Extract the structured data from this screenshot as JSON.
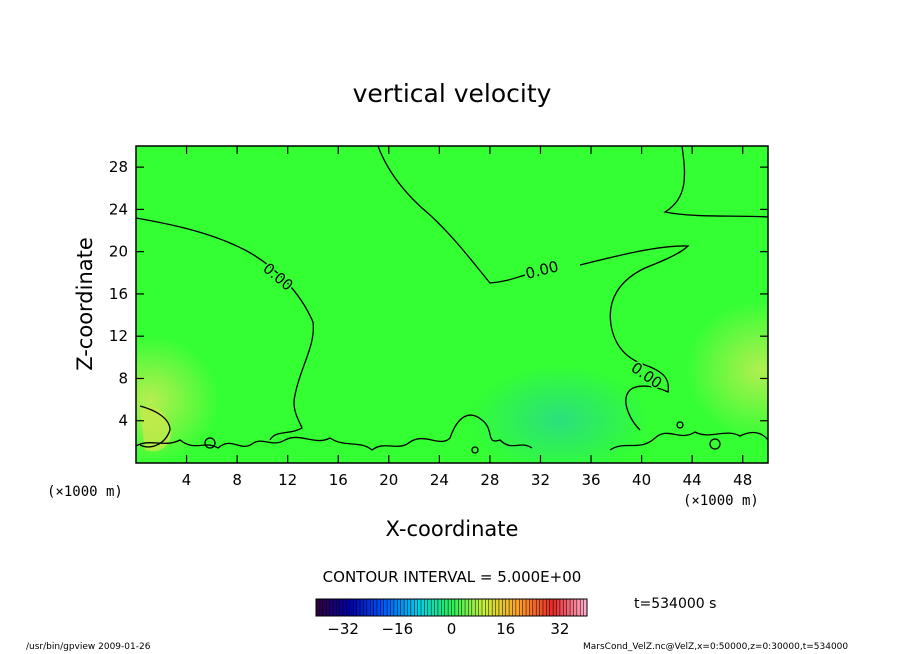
{
  "chart_data": {
    "type": "heatmap",
    "title": "vertical velocity",
    "xlabel": "X-coordinate",
    "ylabel": "Z-coordinate",
    "x_unit": "(×1000 m)",
    "y_unit": "(×1000 m)",
    "xlim": [
      0,
      50
    ],
    "ylim": [
      0,
      30
    ],
    "x_ticks": [
      4,
      8,
      12,
      16,
      20,
      24,
      28,
      32,
      36,
      40,
      44,
      48
    ],
    "y_ticks": [
      4,
      8,
      12,
      16,
      20,
      24,
      28
    ],
    "contour_labels": [
      "0.00",
      "0.00",
      "0.00"
    ],
    "contour_interval_text": "CONTOUR INTERVAL = 5.000E+00",
    "time_text": "t=534000 s",
    "colorbar": {
      "range": [
        -40,
        40
      ],
      "ticks": [
        -32,
        -16,
        0,
        16,
        32
      ]
    },
    "field_colors": {
      "background": "#33ff33",
      "updraft": "#bcec55",
      "downdraft": "#29dc8a",
      "contour": "#000000"
    }
  },
  "footer": {
    "left": "/usr/bin/gpview   2009-01-26",
    "right": "MarsCond_VelZ.nc@VelZ,x=0:50000,z=0:30000,t=534000"
  }
}
